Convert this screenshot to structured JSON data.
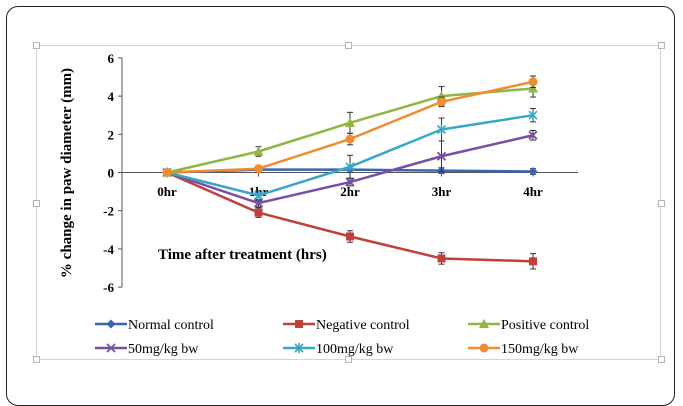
{
  "chart_data": {
    "type": "line",
    "categories": [
      "0hr",
      "1hr",
      "2hr",
      "3hr",
      "4hr"
    ],
    "ylabel": "% change in paw diameter (mm)",
    "xlabel": "Time after treatment (hrs)",
    "ylim": [
      -6,
      6
    ],
    "yticks": [
      "6",
      "4",
      "2",
      "0",
      "-2",
      "-4",
      "-6"
    ],
    "legend_position": "bottom",
    "error_bars": true,
    "series": [
      {
        "name": "Normal control",
        "color": "#3a66b0",
        "marker": "diamond",
        "values": [
          0,
          0.15,
          0.15,
          0.1,
          0.05
        ],
        "errors": [
          0.1,
          0.15,
          0.15,
          0.15,
          0.15
        ]
      },
      {
        "name": "Negative control",
        "color": "#c0413b",
        "marker": "square",
        "values": [
          0,
          -2.1,
          -3.35,
          -4.5,
          -4.65
        ],
        "errors": [
          0.1,
          0.25,
          0.3,
          0.3,
          0.4
        ]
      },
      {
        "name": "Positive control",
        "color": "#8fb644",
        "marker": "triangle",
        "values": [
          0,
          1.1,
          2.6,
          4.0,
          4.4
        ],
        "errors": [
          0.1,
          0.25,
          0.55,
          0.5,
          0.45
        ]
      },
      {
        "name": "50mg/kg bw",
        "color": "#7b4ea6",
        "marker": "x",
        "values": [
          0,
          -1.6,
          -0.5,
          0.85,
          1.95
        ],
        "errors": [
          0.1,
          0.2,
          0.2,
          0.8,
          0.25
        ]
      },
      {
        "name": "100mg/kg bw",
        "color": "#3aa6c7",
        "marker": "star",
        "values": [
          0,
          -1.2,
          0.3,
          2.25,
          3.0
        ],
        "errors": [
          0.1,
          0.25,
          0.6,
          0.6,
          0.35
        ]
      },
      {
        "name": "150mg/kg bw",
        "color": "#f08c32",
        "marker": "circle",
        "values": [
          0,
          0.2,
          1.75,
          3.7,
          4.75
        ],
        "errors": [
          0.1,
          0.15,
          0.3,
          0.25,
          0.3
        ]
      }
    ]
  }
}
